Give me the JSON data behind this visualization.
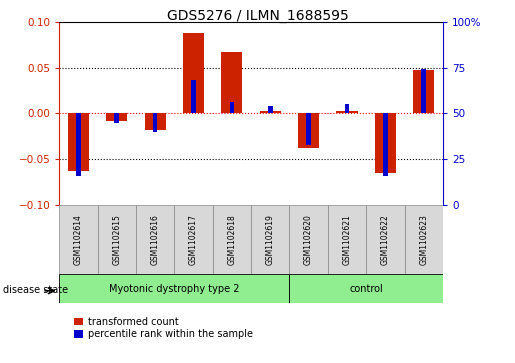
{
  "title": "GDS5276 / ILMN_1688595",
  "samples": [
    "GSM1102614",
    "GSM1102615",
    "GSM1102616",
    "GSM1102617",
    "GSM1102618",
    "GSM1102619",
    "GSM1102620",
    "GSM1102621",
    "GSM1102622",
    "GSM1102623"
  ],
  "red_values": [
    -0.063,
    -0.008,
    -0.018,
    0.088,
    0.067,
    0.003,
    -0.038,
    0.003,
    -0.065,
    0.047
  ],
  "blue_percentile": [
    16,
    45,
    40,
    68,
    56,
    54,
    33,
    55,
    16,
    74
  ],
  "groups": [
    {
      "label": "Myotonic dystrophy type 2",
      "start": 0,
      "end": 6,
      "color": "#90EE90"
    },
    {
      "label": "control",
      "start": 6,
      "end": 10,
      "color": "#90EE90"
    }
  ],
  "ylim": [
    -0.1,
    0.1
  ],
  "yticks_left": [
    -0.1,
    -0.05,
    0,
    0.05,
    0.1
  ],
  "yticks_right": [
    0,
    25,
    50,
    75,
    100
  ],
  "red_color": "#CC2200",
  "blue_color": "#0000CC",
  "red_bar_width": 0.55,
  "blue_bar_width": 0.12,
  "disease_label": "disease state",
  "legend_red": "transformed count",
  "legend_blue": "percentile rank within the sample"
}
